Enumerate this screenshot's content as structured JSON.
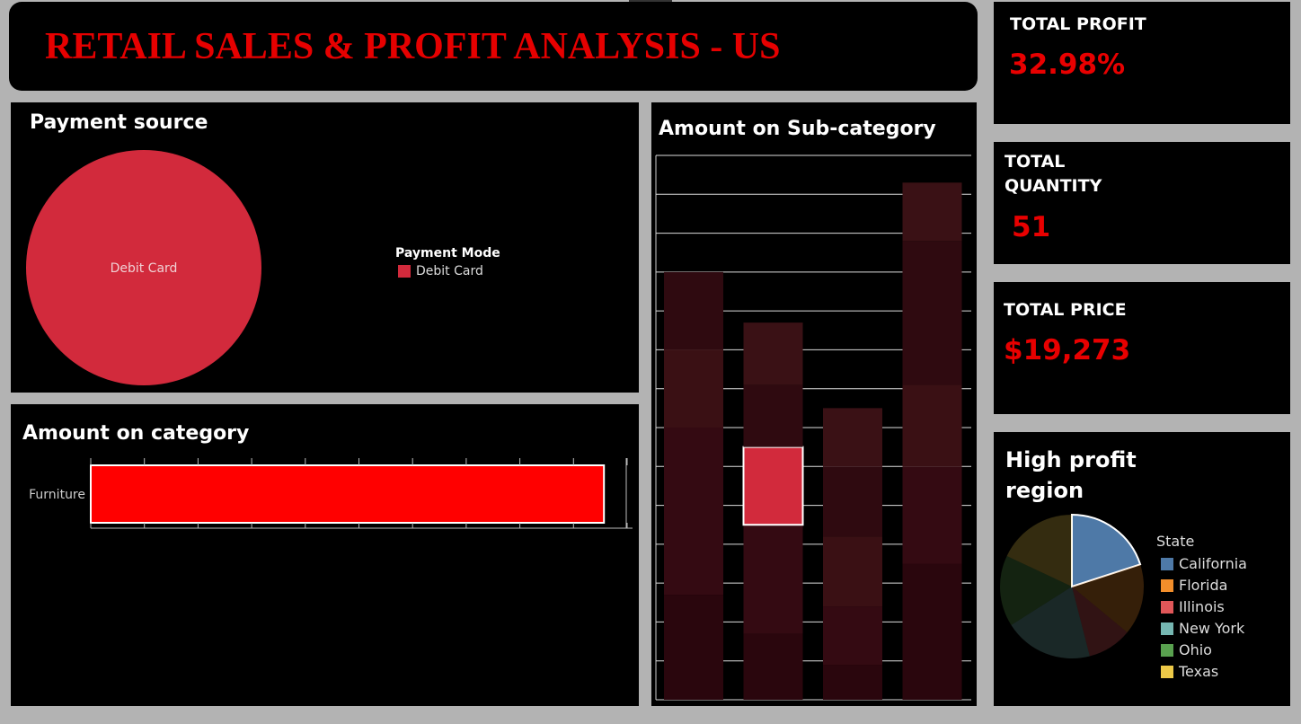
{
  "dashboard": {
    "title": "RETAIL SALES & PROFIT ANALYSIS - US"
  },
  "kpis": {
    "profit": {
      "title": "TOTAL PROFIT",
      "value": "32.98%"
    },
    "quantity": {
      "title_line1": "TOTAL",
      "title_line2": "QUANTITY",
      "value": "51"
    },
    "price": {
      "title": "TOTAL PRICE",
      "value": "$19,273"
    }
  },
  "colors": {
    "accent": "#e60000",
    "panel": "#000000",
    "background": "#b3b3b3",
    "pie_red": "#d22a3c",
    "bar_red": "#ff0000"
  },
  "payment": {
    "title": "Payment  source",
    "legend_title": "Payment Mode"
  },
  "category": {
    "title": "Amount on category"
  },
  "subcategory": {
    "title": "Amount on Sub-category"
  },
  "region": {
    "title_line1": "High profit",
    "title_line2": "region",
    "legend_title": "State"
  },
  "chart_data": [
    {
      "type": "pie",
      "title": "Payment  source",
      "legend_title": "Payment Mode",
      "slices": [
        {
          "label": "Debit Card",
          "value": 100,
          "color": "#d22a3c"
        }
      ]
    },
    {
      "type": "bar",
      "orientation": "horizontal",
      "title": "Amount on category",
      "categories": [
        "Furniture"
      ],
      "values": [
        96
      ],
      "xlim": [
        0,
        100
      ],
      "color": "#ff0000"
    },
    {
      "type": "bar",
      "stacked": true,
      "title": "Amount on Sub-category",
      "ylim": [
        0,
        14
      ],
      "stacks": [
        {
          "segments": [
            2.7,
            4.3,
            2.0,
            2.0
          ]
        },
        {
          "segments": [
            1.7,
            2.8,
            2.0,
            1.6,
            1.6
          ],
          "highlight_index": 2,
          "highlight_color": "#d22a3c"
        },
        {
          "segments": [
            0.9,
            1.5,
            1.8,
            1.8,
            1.5
          ]
        },
        {
          "segments": [
            3.5,
            2.5,
            2.1,
            3.7,
            1.5
          ]
        }
      ],
      "segment_colors": [
        "#2a060d",
        "#340a12",
        "#3a1014",
        "#2f0a10",
        "#3a1115"
      ],
      "grid": true
    },
    {
      "type": "pie",
      "title": "High profit region",
      "legend_title": "State",
      "slices": [
        {
          "label": "California",
          "value": 20,
          "color": "#4e79a7"
        },
        {
          "label": "Florida",
          "value": 16,
          "color": "#f28e2b"
        },
        {
          "label": "Illinois",
          "value": 10,
          "color": "#e15759"
        },
        {
          "label": "New York",
          "value": 20,
          "color": "#76b7b2"
        },
        {
          "label": "Ohio",
          "value": 16,
          "color": "#59a14f"
        },
        {
          "label": "Texas",
          "value": 18,
          "color": "#edc948"
        }
      ]
    }
  ]
}
